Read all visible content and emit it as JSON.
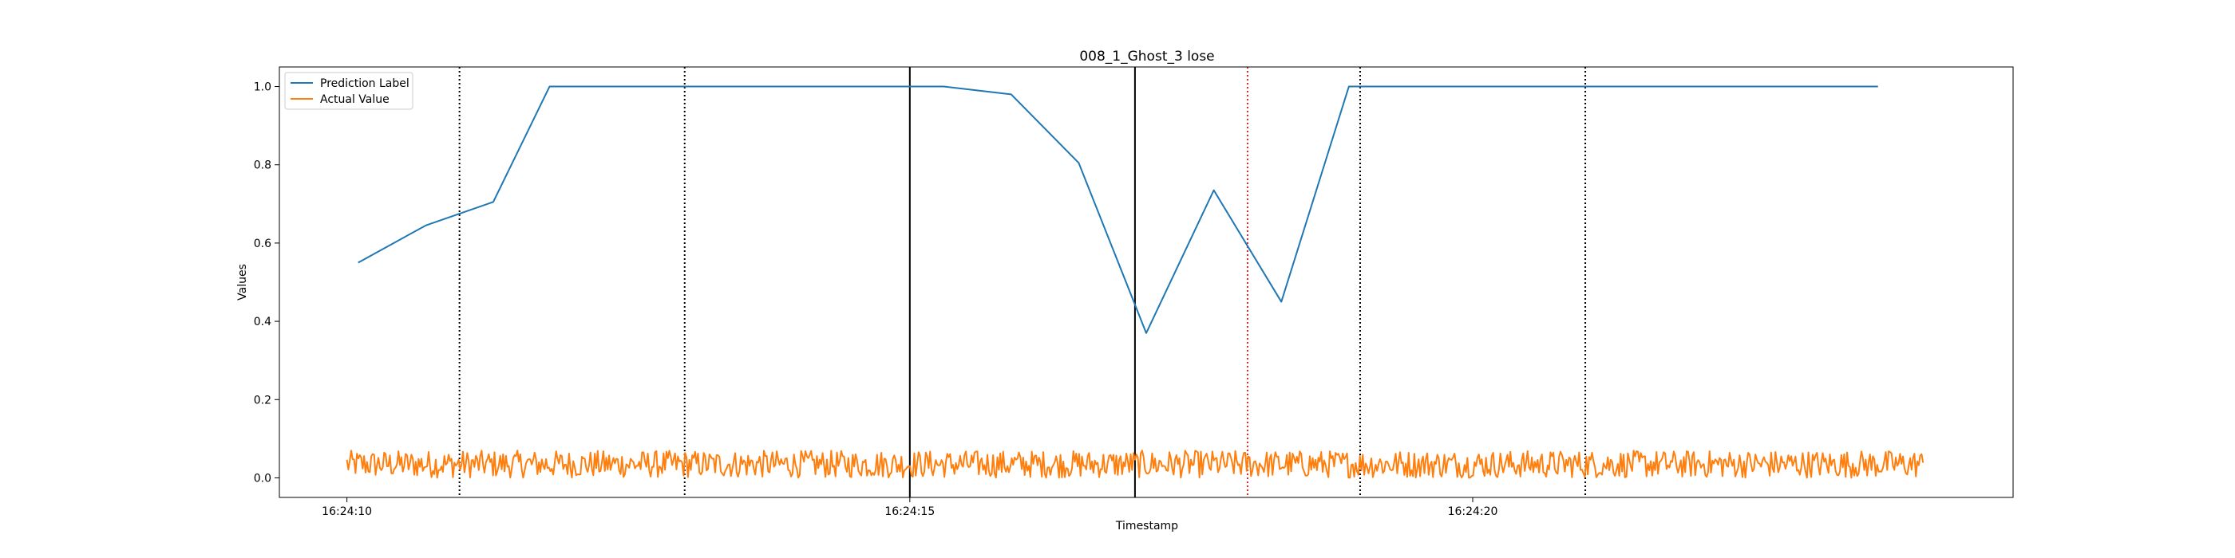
{
  "chart_data": {
    "type": "line",
    "title": "008_1_Ghost_3 lose",
    "xlabel": "Timestamp",
    "ylabel": "Values",
    "xlim": [
      "16:24:09.4",
      "16:24:24.8"
    ],
    "ylim": [
      -0.05,
      1.05
    ],
    "x_ticks": [
      "16:24:10",
      "16:24:15",
      "16:24:20"
    ],
    "y_ticks": [
      "0.0",
      "0.2",
      "0.4",
      "0.6",
      "0.8",
      "1.0"
    ],
    "grid": false,
    "legend_position": "top-left",
    "series": [
      {
        "name": "Prediction Label",
        "color": "#1f77b4",
        "x": [
          "16:24:10.1",
          "16:24:10.7",
          "16:24:11.3",
          "16:24:11.8",
          "16:24:12.5",
          "16:24:13.5",
          "16:24:14.5",
          "16:24:15.3",
          "16:24:15.9",
          "16:24:16.5",
          "16:24:17.1",
          "16:24:17.7",
          "16:24:18.3",
          "16:24:18.9",
          "16:24:20.0",
          "16:24:21.5",
          "16:24:23.0",
          "16:24:23.6"
        ],
        "y": [
          0.55,
          0.645,
          0.705,
          1.0,
          1.0,
          1.0,
          1.0,
          1.0,
          0.98,
          0.805,
          0.37,
          0.735,
          0.45,
          1.0,
          1.0,
          1.0,
          1.0,
          1.0
        ]
      },
      {
        "name": "Actual Value",
        "color": "#ff7f0e",
        "x_range": [
          "16:24:10.0",
          "16:24:24.0"
        ],
        "y_range": [
          0.0,
          0.07
        ],
        "approx_mean": 0.03,
        "note_visible_pattern": "dense rapid oscillation"
      }
    ],
    "vertical_lines": [
      {
        "x": "16:24:11.0",
        "style": "dotted",
        "color": "#000000"
      },
      {
        "x": "16:24:13.0",
        "style": "dotted",
        "color": "#000000"
      },
      {
        "x": "16:24:15.0",
        "style": "solid",
        "color": "#000000"
      },
      {
        "x": "16:24:17.0",
        "style": "solid",
        "color": "#000000"
      },
      {
        "x": "16:24:18.0",
        "style": "dotted",
        "color": "#d62728"
      },
      {
        "x": "16:24:19.0",
        "style": "dotted",
        "color": "#000000"
      },
      {
        "x": "16:24:21.0",
        "style": "dotted",
        "color": "#000000"
      }
    ]
  }
}
